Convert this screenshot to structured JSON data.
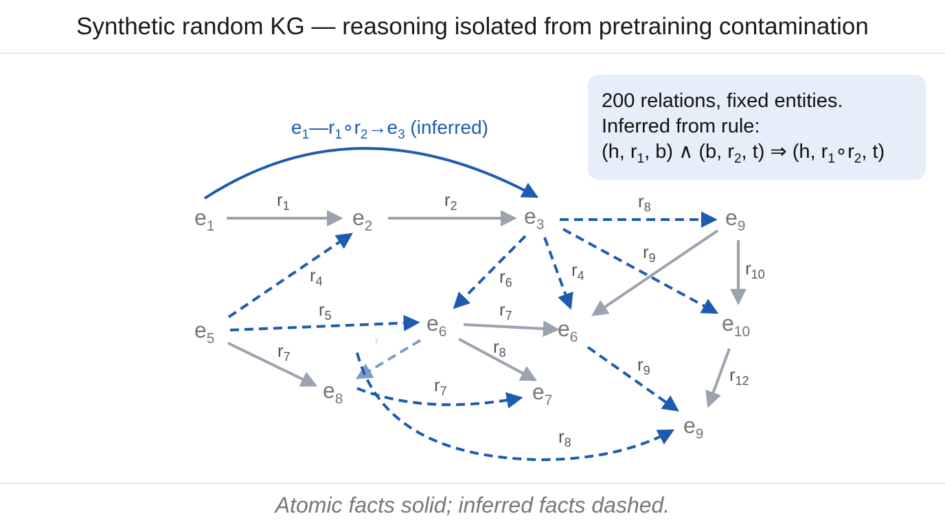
{
  "header": {
    "title": "Synthetic random KG — reasoning isolated from pretraining contamination"
  },
  "info_box": {
    "line1": "200 relations, fixed entities.",
    "line2": "Inferred from rule:",
    "rule": {
      "p1": "(h, r",
      "s1": "1",
      "p2": ", b) ∧ (b, r",
      "s2": "2",
      "p3": ", t) ⇒ (h, r",
      "s3": "1",
      "p4": "∘r",
      "s4": "2",
      "p5": ", t)"
    }
  },
  "inferred_label": {
    "p1": "e",
    "s1": "1",
    "p2": "—r",
    "s2": "1",
    "p3": "∘r",
    "s3": "2",
    "p4": "→e",
    "s4": "3",
    "p5": " (inferred)"
  },
  "nodes": [
    {
      "id": "e1",
      "base": "e",
      "sub": "1"
    },
    {
      "id": "e2",
      "base": "e",
      "sub": "2"
    },
    {
      "id": "e3",
      "base": "e",
      "sub": "3"
    },
    {
      "id": "e9-top",
      "base": "e",
      "sub": "9"
    },
    {
      "id": "e5",
      "base": "e",
      "sub": "5"
    },
    {
      "id": "e6-left",
      "base": "e",
      "sub": "6"
    },
    {
      "id": "e6-right",
      "base": "e",
      "sub": "6"
    },
    {
      "id": "e10",
      "base": "e",
      "sub": "10"
    },
    {
      "id": "e8",
      "base": "e",
      "sub": "8"
    },
    {
      "id": "e7",
      "base": "e",
      "sub": "7"
    },
    {
      "id": "e9-bottom",
      "base": "e",
      "sub": "9"
    }
  ],
  "relation_labels": [
    {
      "id": "r1",
      "base": "r",
      "sub": "1"
    },
    {
      "id": "r2",
      "base": "r",
      "sub": "2"
    },
    {
      "id": "r8-top",
      "base": "r",
      "sub": "8"
    },
    {
      "id": "r9-mid",
      "base": "r",
      "sub": "9"
    },
    {
      "id": "r10",
      "base": "r",
      "sub": "10"
    },
    {
      "id": "r4-left",
      "base": "r",
      "sub": "4"
    },
    {
      "id": "r6",
      "base": "r",
      "sub": "6"
    },
    {
      "id": "r4-mid",
      "base": "r",
      "sub": "4"
    },
    {
      "id": "r5",
      "base": "r",
      "sub": "5"
    },
    {
      "id": "r7-mid",
      "base": "r",
      "sub": "7"
    },
    {
      "id": "r7-left",
      "base": "r",
      "sub": "7"
    },
    {
      "id": "r8-mid",
      "base": "r",
      "sub": "8"
    },
    {
      "id": "r9-low",
      "base": "r",
      "sub": "9"
    },
    {
      "id": "r12",
      "base": "r",
      "sub": "12"
    },
    {
      "id": "r7-low",
      "base": "r",
      "sub": "7"
    },
    {
      "id": "r8-low",
      "base": "r",
      "sub": "8"
    },
    {
      "id": "r-faded",
      "base": "r",
      "sub": ""
    }
  ],
  "colors": {
    "atomic": "#9aa3af",
    "inferred": "#1e5bb0",
    "inferred_faded": "#7f9cc4",
    "info_bg": "#e6eef9"
  },
  "footer": {
    "caption": "Atomic facts solid; inferred facts dashed."
  }
}
